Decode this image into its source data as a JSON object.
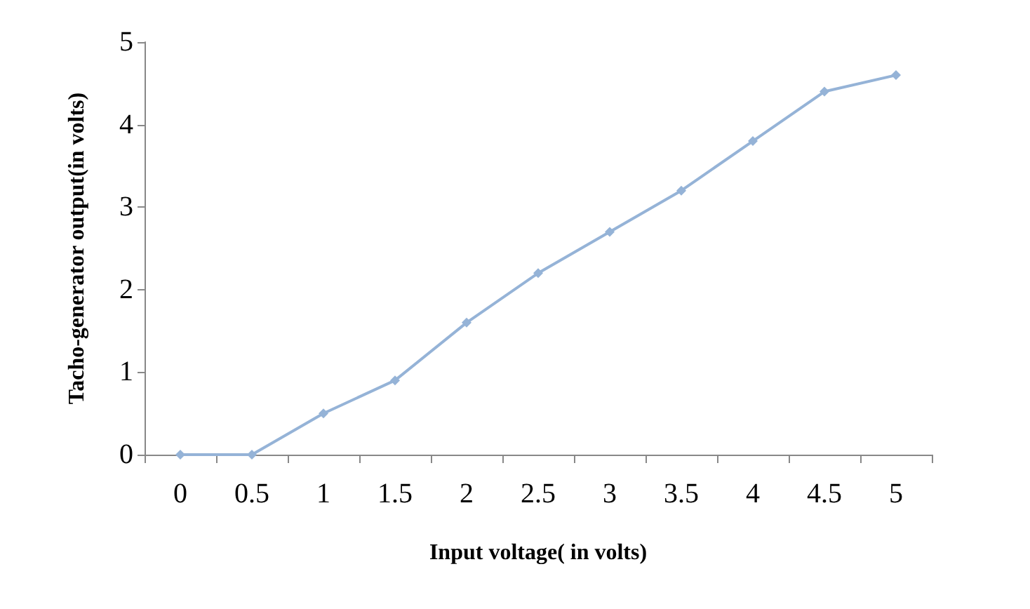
{
  "chart_data": {
    "type": "line",
    "xlabel": "Input voltage( in volts)",
    "ylabel": "Tacho-generator output(in volts)",
    "categories": [
      "0",
      "0.5",
      "1",
      "1.5",
      "2",
      "2.5",
      "3",
      "3.5",
      "4",
      "4.5",
      "5"
    ],
    "series": [
      {
        "color": "#95b3d7",
        "values": [
          0,
          0,
          0.5,
          0.9,
          1.6,
          2.2,
          2.7,
          3.2,
          3.8,
          4.4,
          4.6
        ]
      }
    ],
    "ylim": [
      0,
      5
    ],
    "yticks": [
      0,
      1,
      2,
      3,
      4,
      5
    ],
    "grid": false,
    "marker": "diamond",
    "line_style": "solid"
  }
}
